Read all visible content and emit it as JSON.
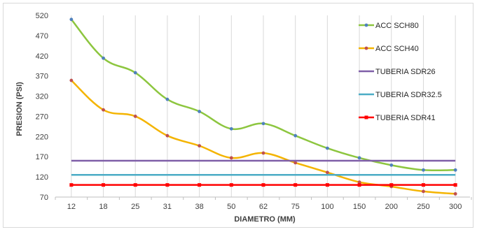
{
  "chart_data": {
    "type": "line",
    "xlabel": "DIAMETRO (MM)",
    "ylabel": "PRESION (PSI)",
    "categories": [
      "12",
      "18",
      "25",
      "31",
      "38",
      "50",
      "62",
      "75",
      "100",
      "150",
      "200",
      "250",
      "300"
    ],
    "y_ticks": [
      70,
      120,
      170,
      220,
      270,
      320,
      370,
      420,
      470,
      520
    ],
    "ylim": [
      70,
      520
    ],
    "grid": "vertical",
    "legend_position": "right",
    "series": [
      {
        "name": "ACC SCH80",
        "color": "#8dc63f",
        "marker_color": "#4f81bd",
        "smooth": true,
        "markers": true,
        "values": [
          510,
          414,
          378,
          312,
          282,
          239,
          252,
          222,
          191,
          167,
          149,
          137,
          137
        ]
      },
      {
        "name": "ACC SCH40",
        "color": "#f4b400",
        "marker_color": "#c0504d",
        "smooth": true,
        "markers": true,
        "values": [
          359,
          286,
          270,
          222,
          197,
          167,
          179,
          155,
          131,
          107,
          96,
          84,
          78
        ]
      },
      {
        "name": "TUBERIA SDR26",
        "color": "#7f5fa8",
        "smooth": false,
        "markers": false,
        "values": [
          160,
          160,
          160,
          160,
          160,
          160,
          160,
          160,
          160,
          160,
          160,
          160,
          160
        ]
      },
      {
        "name": "TUBERIA SDR32.5",
        "color": "#4bacc6",
        "smooth": false,
        "markers": false,
        "values": [
          125,
          125,
          125,
          125,
          125,
          125,
          125,
          125,
          125,
          125,
          125,
          125,
          125
        ]
      },
      {
        "name": "TUBERIA SDR41",
        "color": "#ff0000",
        "smooth": false,
        "markers": true,
        "marker_color": "#ff0000",
        "values": [
          100,
          100,
          100,
          100,
          100,
          100,
          100,
          100,
          100,
          100,
          100,
          100,
          100
        ]
      }
    ]
  }
}
